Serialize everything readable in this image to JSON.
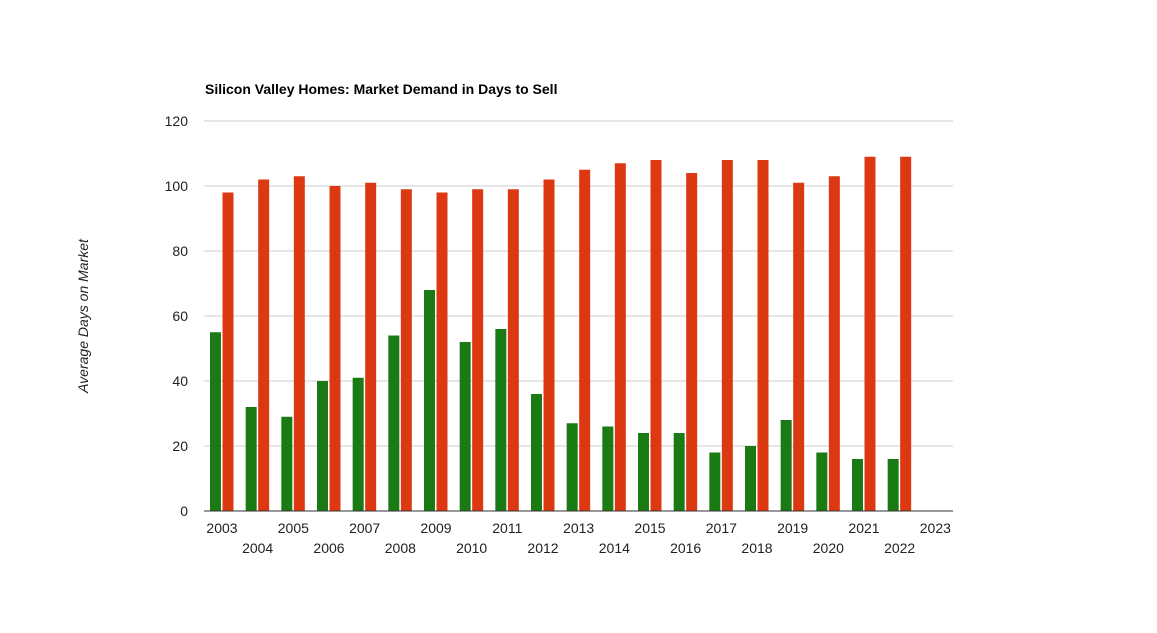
{
  "chart_data": {
    "type": "bar",
    "title": "Silicon Valley Homes: Market Demand in Days to Sell",
    "xlabel": "",
    "ylabel": "Average Days on Market",
    "ylim": [
      0,
      120
    ],
    "yticks": [
      0,
      20,
      40,
      60,
      80,
      100,
      120
    ],
    "grid": true,
    "categories": [
      "2003",
      "2004",
      "2005",
      "2006",
      "2007",
      "2008",
      "2009",
      "2010",
      "2011",
      "2012",
      "2013",
      "2014",
      "2015",
      "2016",
      "2017",
      "2018",
      "2019",
      "2020",
      "2021",
      "2022",
      "2023"
    ],
    "series": [
      {
        "color": "#1a7a13",
        "values": [
          55,
          32,
          29,
          40,
          41,
          54,
          68,
          52,
          56,
          36,
          27,
          26,
          24,
          24,
          18,
          20,
          28,
          18,
          16,
          16,
          null
        ]
      },
      {
        "color": "#dc3912",
        "values": [
          98,
          102,
          103,
          100,
          101,
          99,
          98,
          99,
          99,
          102,
          105,
          107,
          108,
          104,
          108,
          108,
          101,
          103,
          109,
          109,
          null
        ]
      }
    ]
  }
}
